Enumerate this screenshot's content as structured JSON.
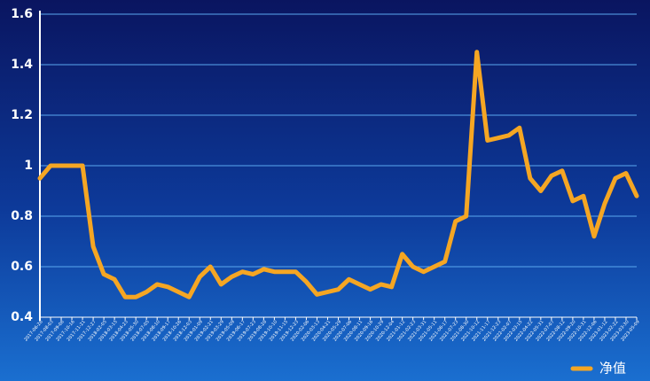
{
  "chart_data": {
    "type": "line",
    "categories": [
      "2017-06-28",
      "2017-08-03",
      "2017-09-08",
      "2017-10-16",
      "2017-11-21",
      "2017-12-27",
      "2018-02-05",
      "2018-03-15",
      "2018-04-23",
      "2018-05-30",
      "2018-07-05",
      "2018-08-10",
      "2018-09-17",
      "2018-10-26",
      "2018-12-03",
      "2019-01-09",
      "2019-02-21",
      "2019-03-29",
      "2019-05-09",
      "2019-06-17",
      "2019-07-23",
      "2019-08-28",
      "2019-10-10",
      "2019-11-15",
      "2019-12-23",
      "2020-02-06",
      "2020-03-13",
      "2020-04-21",
      "2020-05-29",
      "2020-07-06",
      "2020-08-11",
      "2020-09-16",
      "2020-10-29",
      "2020-12-04",
      "2021-01-12",
      "2021-02-23",
      "2021-03-31",
      "2021-05-11",
      "2021-06-17",
      "2021-07-23",
      "2021-08-30",
      "2021-10-12",
      "2021-11-17",
      "2021-12-23",
      "2022-02-07",
      "2022-03-15",
      "2022-04-22",
      "2022-05-31",
      "2022-07-07",
      "2022-08-12",
      "2022-09-20",
      "2022-10-31",
      "2022-12-06",
      "2023-01-12",
      "2023-02-22",
      "2023-03-30",
      "2023-05-09"
    ],
    "series": [
      {
        "name": "净值",
        "color": "#f5a623",
        "values": [
          0.95,
          1,
          1,
          1,
          1,
          0.68,
          0.57,
          0.55,
          0.48,
          0.48,
          0.5,
          0.53,
          0.52,
          0.5,
          0.48,
          0.56,
          0.6,
          0.53,
          0.56,
          0.58,
          0.57,
          0.59,
          0.58,
          0.58,
          0.58,
          0.54,
          0.49,
          0.5,
          0.51,
          0.55,
          0.53,
          0.51,
          0.53,
          0.52,
          0.65,
          0.6,
          0.58,
          0.6,
          0.62,
          0.78,
          0.8,
          1.45,
          1.1,
          1.11,
          1.12,
          1.15,
          0.95,
          0.9,
          0.96,
          0.98,
          0.86,
          0.88,
          0.72,
          0.85,
          0.95,
          0.97,
          0.88
        ]
      }
    ],
    "ylim": [
      0.4,
      1.6
    ],
    "yticks": [
      0.4,
      0.6,
      0.8,
      1,
      1.2,
      1.4,
      1.6
    ],
    "grid": true,
    "legend": "bottom-right"
  }
}
